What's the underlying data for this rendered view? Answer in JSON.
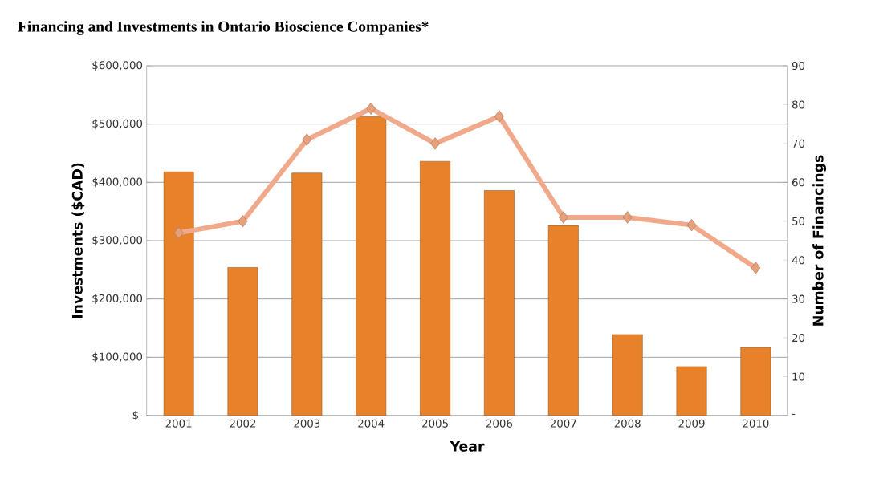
{
  "chart_data": {
    "type": "bar",
    "title": "Financing and Investments in Ontario Bioscience Companies*",
    "xlabel": "Year",
    "ylabel": "Investments ($CAD)",
    "y2label": "Number of Financings",
    "categories": [
      "2001",
      "2002",
      "2003",
      "2004",
      "2005",
      "2006",
      "2007",
      "2008",
      "2009",
      "2010"
    ],
    "series": [
      {
        "color": "#e8822a",
        "values": [
          418000,
          254000,
          416000,
          513000,
          436000,
          386000,
          326000,
          139000,
          84000,
          117000
        ]
      },
      {
        "type": "line",
        "axis": "y2",
        "color": "#f0a98a",
        "marker": "diamond",
        "values": [
          47,
          50,
          71,
          79,
          70,
          77,
          51,
          51,
          49,
          38
        ]
      }
    ],
    "ylim": [
      0,
      600000
    ],
    "yticks": [
      {
        "value": 0,
        "label": "$-"
      },
      {
        "value": 100000,
        "label": "$100,000"
      },
      {
        "value": 200000,
        "label": "$200,000"
      },
      {
        "value": 300000,
        "label": "$300,000"
      },
      {
        "value": 400000,
        "label": "$400,000"
      },
      {
        "value": 500000,
        "label": "$500,000"
      },
      {
        "value": 600000,
        "label": "$600,000"
      }
    ],
    "y2lim": [
      0,
      90
    ],
    "y2ticks": [
      {
        "value": 0,
        "label": "-"
      },
      10,
      20,
      30,
      40,
      50,
      60,
      70,
      80,
      90
    ],
    "grid": "y"
  }
}
